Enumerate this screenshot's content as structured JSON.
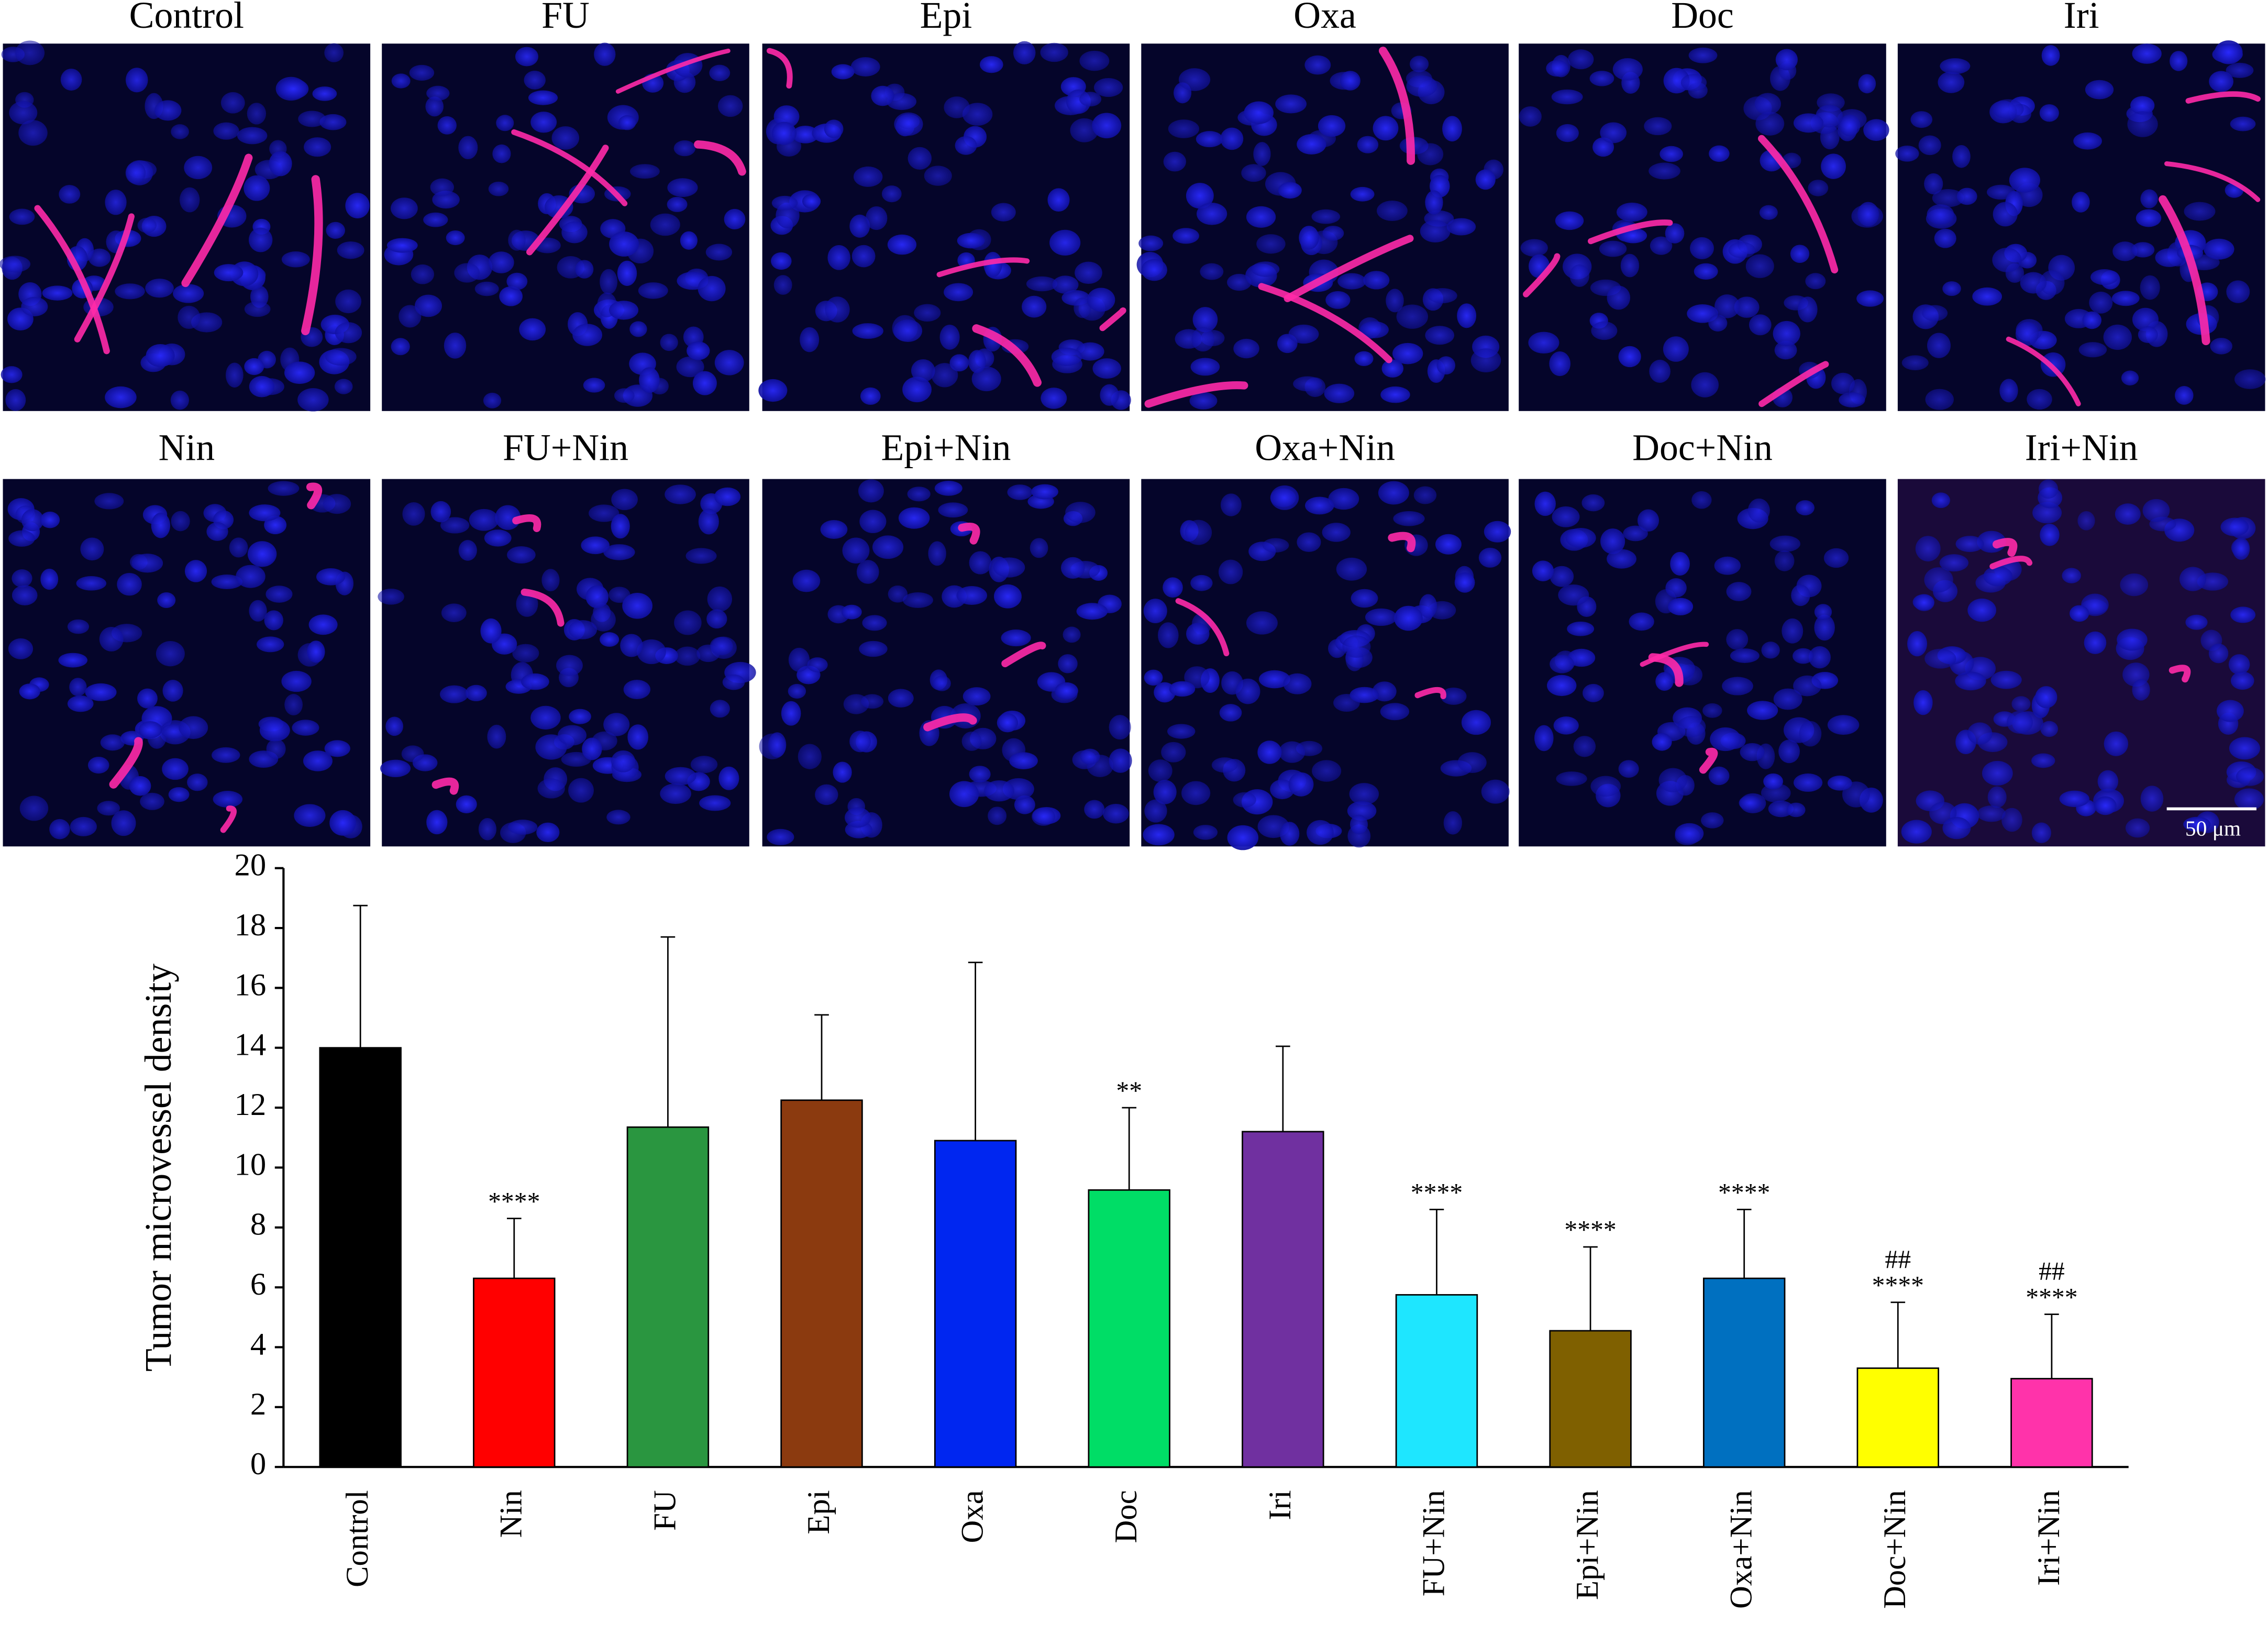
{
  "image_panels": {
    "top_row": [
      "Control",
      "FU",
      "Epi",
      "Oxa",
      "Doc",
      "Iri"
    ],
    "bottom_row": [
      "Nin",
      "FU+Nin",
      "Epi+Nin",
      "Oxa+Nin",
      "Doc+Nin",
      "Iri+Nin"
    ],
    "scale_bar": "50 μm"
  },
  "chart_data": {
    "type": "bar",
    "y_label": "Tumor microvessel density",
    "categories": [
      "Control",
      "Nin",
      "FU",
      "Epi",
      "Oxa",
      "Doc",
      "Iri",
      "FU+Nin",
      "Epi+Nin",
      "Oxa+Nin",
      "Doc+Nin",
      "Iri+Nin"
    ],
    "values": [
      14,
      6.3,
      11.35,
      12.25,
      10.9,
      9.25,
      11.2,
      5.75,
      4.55,
      6.3,
      3.3,
      2.95
    ],
    "errors": [
      4.75,
      2.0,
      6.35,
      2.85,
      5.95,
      2.75,
      2.85,
      2.85,
      2.8,
      2.3,
      2.2,
      2.15
    ],
    "colors": [
      "#000000",
      "#ff0000",
      "#2a9640",
      "#8b3a0f",
      "#0026f0",
      "#00dd66",
      "#7030a0",
      "#1ee6ff",
      "#7f6000",
      "#0070c0",
      "#ffff00",
      "#ff33aa"
    ],
    "annotations": [
      {
        "category": "Nin",
        "lines": [
          "****"
        ]
      },
      {
        "category": "Doc",
        "lines": [
          "**"
        ]
      },
      {
        "category": "FU+Nin",
        "lines": [
          "****"
        ]
      },
      {
        "category": "Epi+Nin",
        "lines": [
          "****"
        ]
      },
      {
        "category": "Oxa+Nin",
        "lines": [
          "****"
        ]
      },
      {
        "category": "Doc+Nin",
        "lines": [
          "##",
          "****"
        ]
      },
      {
        "category": "Iri+Nin",
        "lines": [
          "##",
          "****"
        ]
      }
    ],
    "ylim": [
      0,
      20
    ],
    "yticks": [
      0,
      2,
      4,
      6,
      8,
      10,
      12,
      14,
      16,
      18,
      20
    ],
    "grid": false
  }
}
